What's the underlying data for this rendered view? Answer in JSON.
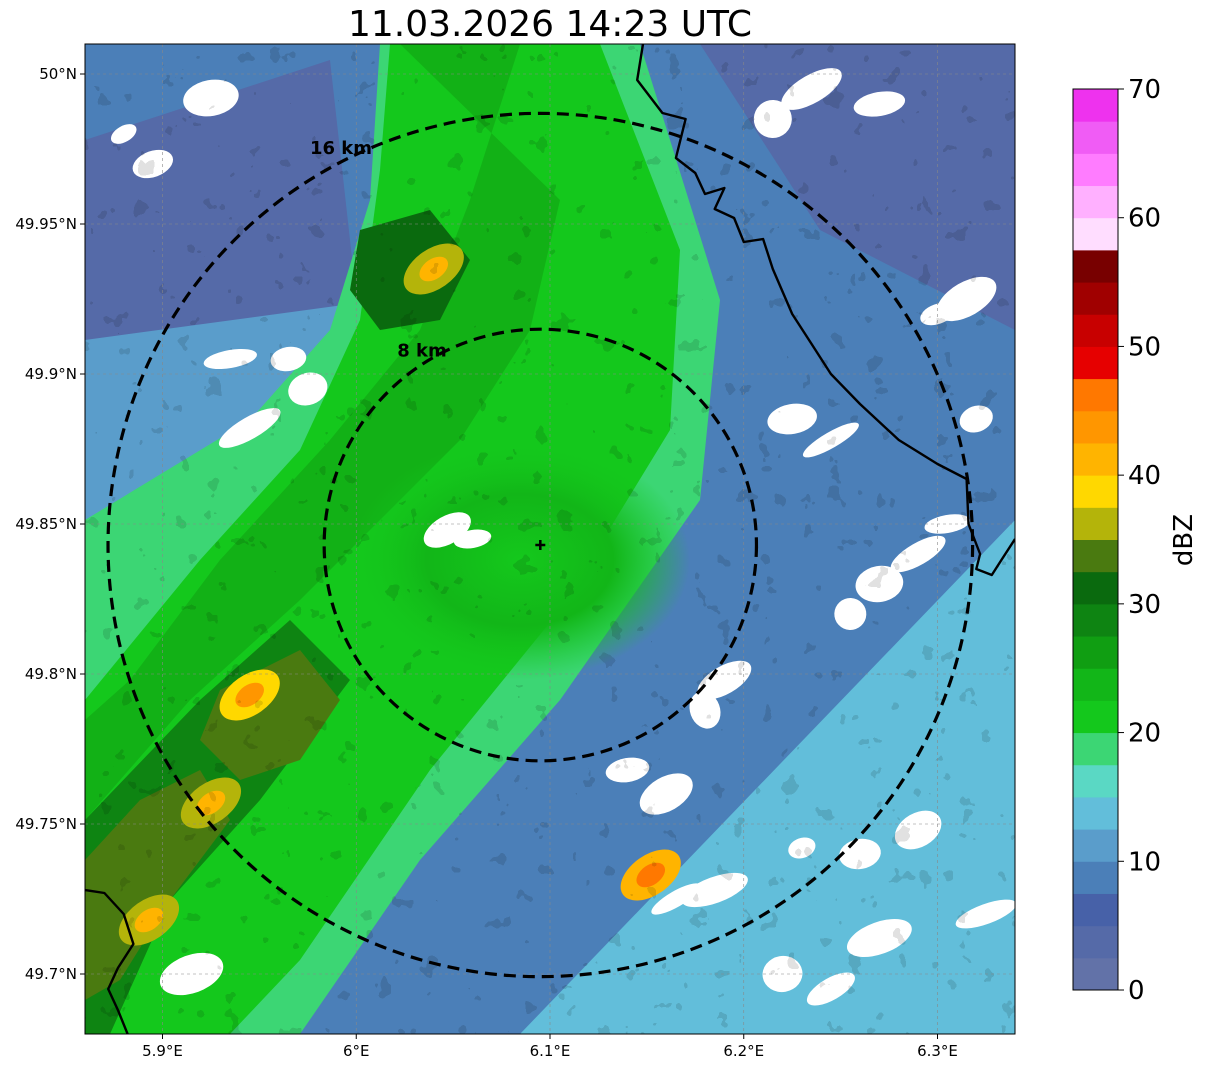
{
  "title": "11.03.2026 14:23 UTC",
  "map": {
    "lon_range": [
      5.86,
      6.34
    ],
    "lat_range": [
      49.68,
      50.01
    ],
    "radar_site": {
      "lon": 6.095,
      "lat": 49.843
    },
    "lon_ticks": [
      {
        "value": 5.9,
        "label": "5.9°E"
      },
      {
        "value": 6.0,
        "label": "6°E"
      },
      {
        "value": 6.1,
        "label": "6.1°E"
      },
      {
        "value": 6.2,
        "label": "6.2°E"
      },
      {
        "value": 6.3,
        "label": "6.3°E"
      }
    ],
    "lat_ticks": [
      {
        "value": 50.0,
        "label": "50°N"
      },
      {
        "value": 49.95,
        "label": "49.95°N"
      },
      {
        "value": 49.9,
        "label": "49.9°N"
      },
      {
        "value": 49.85,
        "label": "49.85°N"
      },
      {
        "value": 49.8,
        "label": "49.8°N"
      },
      {
        "value": 49.75,
        "label": "49.75°N"
      },
      {
        "value": 49.7,
        "label": "49.7°N"
      }
    ],
    "range_rings": [
      {
        "km": 8,
        "label": "8 km"
      },
      {
        "km": 16,
        "label": "16 km"
      }
    ],
    "hotspots": [
      {
        "lon": 5.945,
        "lat": 49.793,
        "dbz": 42
      },
      {
        "lon": 5.925,
        "lat": 49.757,
        "dbz": 40
      },
      {
        "lon": 6.04,
        "lat": 49.935,
        "dbz": 40
      },
      {
        "lon": 5.893,
        "lat": 49.718,
        "dbz": 38
      },
      {
        "lon": 6.152,
        "lat": 49.733,
        "dbz": 44
      }
    ],
    "echo_free_areas": [
      {
        "lon": 5.88,
        "lat": 49.98
      },
      {
        "lon": 5.895,
        "lat": 49.97
      },
      {
        "lon": 5.925,
        "lat": 49.992
      },
      {
        "lon": 5.945,
        "lat": 49.882
      },
      {
        "lon": 5.975,
        "lat": 49.895
      },
      {
        "lon": 5.935,
        "lat": 49.905
      },
      {
        "lon": 6.235,
        "lat": 49.995
      },
      {
        "lon": 6.215,
        "lat": 49.985
      },
      {
        "lon": 6.27,
        "lat": 49.99
      },
      {
        "lon": 6.315,
        "lat": 49.925
      },
      {
        "lon": 6.3,
        "lat": 49.92
      },
      {
        "lon": 6.225,
        "lat": 49.885
      },
      {
        "lon": 6.245,
        "lat": 49.878
      },
      {
        "lon": 6.32,
        "lat": 49.885
      },
      {
        "lon": 6.27,
        "lat": 49.83
      },
      {
        "lon": 6.29,
        "lat": 49.84
      },
      {
        "lon": 6.255,
        "lat": 49.82
      },
      {
        "lon": 6.305,
        "lat": 49.85
      },
      {
        "lon": 6.19,
        "lat": 49.798
      },
      {
        "lon": 6.18,
        "lat": 49.788
      },
      {
        "lon": 6.14,
        "lat": 49.768
      },
      {
        "lon": 6.16,
        "lat": 49.76
      },
      {
        "lon": 6.23,
        "lat": 49.742
      },
      {
        "lon": 6.26,
        "lat": 49.74
      },
      {
        "lon": 6.165,
        "lat": 49.725
      },
      {
        "lon": 6.185,
        "lat": 49.728
      },
      {
        "lon": 6.22,
        "lat": 49.7
      },
      {
        "lon": 6.245,
        "lat": 49.695
      },
      {
        "lon": 6.27,
        "lat": 49.712
      },
      {
        "lon": 6.06,
        "lat": 49.845
      },
      {
        "lon": 6.047,
        "lat": 49.848
      },
      {
        "lon": 5.915,
        "lat": 49.7
      },
      {
        "lon": 5.965,
        "lat": 49.905
      },
      {
        "lon": 6.29,
        "lat": 49.748
      },
      {
        "lon": 6.325,
        "lat": 49.72
      }
    ],
    "border_segments": [
      [
        [
          6.148,
          50.01
        ],
        [
          6.145,
          49.998
        ],
        [
          6.158,
          49.987
        ],
        [
          6.17,
          49.985
        ],
        [
          6.165,
          49.972
        ],
        [
          6.175,
          49.967
        ],
        [
          6.18,
          49.96
        ],
        [
          6.19,
          49.962
        ],
        [
          6.185,
          49.955
        ],
        [
          6.195,
          49.952
        ],
        [
          6.2,
          49.944
        ],
        [
          6.21,
          49.945
        ],
        [
          6.215,
          49.935
        ],
        [
          6.225,
          49.92
        ],
        [
          6.235,
          49.91
        ],
        [
          6.245,
          49.9
        ],
        [
          6.26,
          49.89
        ],
        [
          6.28,
          49.878
        ],
        [
          6.3,
          49.87
        ],
        [
          6.315,
          49.865
        ],
        [
          6.316,
          49.85
        ],
        [
          6.322,
          49.84
        ],
        [
          6.32,
          49.835
        ],
        [
          6.328,
          49.833
        ],
        [
          6.333,
          49.838
        ],
        [
          6.34,
          49.845
        ]
      ],
      [
        [
          5.86,
          49.728
        ],
        [
          5.87,
          49.727
        ],
        [
          5.88,
          49.72
        ],
        [
          5.885,
          49.71
        ],
        [
          5.877,
          49.702
        ],
        [
          5.872,
          49.695
        ],
        [
          5.877,
          49.688
        ],
        [
          5.882,
          49.68
        ]
      ]
    ],
    "crosshair_name": "radar-site-marker"
  },
  "colorbar": {
    "label": "dBZ",
    "vmin": 0,
    "vmax": 70,
    "tick_values": [
      0,
      10,
      20,
      30,
      40,
      50,
      60,
      70
    ],
    "tick_labels": [
      "0",
      "10",
      "20",
      "30",
      "40",
      "50",
      "60",
      "70"
    ],
    "palette": [
      "#6272A8",
      "#556AA8",
      "#4761A8",
      "#4B7FB8",
      "#5A9DCB",
      "#62BEDA",
      "#5AD8C4",
      "#3CD674",
      "#14C81C",
      "#12B618",
      "#109E12",
      "#0E8412",
      "#0A6A0E",
      "#4A7A10",
      "#B4B40A",
      "#FFD800",
      "#FFB400",
      "#FF9600",
      "#FF7800",
      "#E60000",
      "#C80000",
      "#A00000",
      "#780000",
      "#FFDDFF",
      "#FFB0FF",
      "#FF7CFF",
      "#F05CF5",
      "#EE32EE"
    ]
  }
}
